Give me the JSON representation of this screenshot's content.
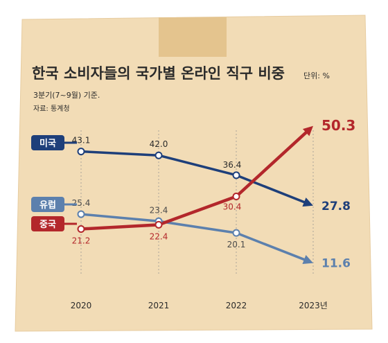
{
  "title": "한국 소비자들의 국가별 온라인 직구 비중",
  "unit": "단위: %",
  "subtitle": "3분기(7~9월) 기준.",
  "source": "자료: 통계청",
  "colors": {
    "box": "#f2dcb6",
    "box_edge": "#e7cca0",
    "tape": "#e4c48e",
    "us": "#1e3f7a",
    "eu": "#5c80ad",
    "cn": "#b3272b",
    "guide": "#a9a39a",
    "text": "#2a2a2a"
  },
  "chart_data": {
    "type": "line",
    "title": "한국 소비자들의 국가별 온라인 직구 비중",
    "x": [
      "2020",
      "2021",
      "2022",
      "2023년"
    ],
    "ylim": [
      8,
      53
    ],
    "grid": false,
    "series": [
      {
        "name": "미국",
        "key": "us",
        "values": [
          43.1,
          42.0,
          36.4,
          27.8
        ],
        "labels": [
          "43.1",
          "42.0",
          "36.4",
          "27.8"
        ]
      },
      {
        "name": "유럽",
        "key": "eu",
        "values": [
          25.4,
          23.4,
          20.1,
          11.6
        ],
        "labels": [
          "25.4",
          "23.4",
          "20.1",
          "11.6"
        ]
      },
      {
        "name": "중국",
        "key": "cn",
        "values": [
          21.2,
          22.4,
          30.4,
          50.3
        ],
        "labels": [
          "21.2",
          "22.4",
          "30.4",
          "50.3"
        ]
      }
    ]
  }
}
